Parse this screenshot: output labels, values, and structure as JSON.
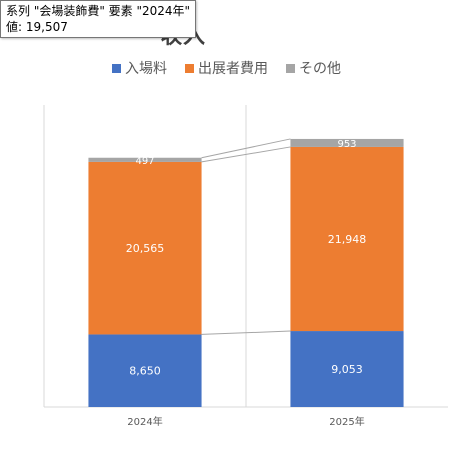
{
  "tooltip": {
    "line1": "系列 \"会場装飾費\" 要素 \"2024年\"",
    "line2": "値: 19,507"
  },
  "chart_data": {
    "type": "bar",
    "stacked": true,
    "title": "収入",
    "categories": [
      "2024年",
      "2025年"
    ],
    "series": [
      {
        "name": "入場料",
        "color": "#4472C4",
        "values": [
          8650,
          9053
        ]
      },
      {
        "name": "出展者費用",
        "color": "#ED7D31",
        "values": [
          20565,
          21948
        ]
      },
      {
        "name": "その他",
        "color": "#A5A5A5",
        "values": [
          497,
          953
        ]
      }
    ],
    "data_labels": [
      [
        "8,650",
        "9,053"
      ],
      [
        "20,565",
        "21,948"
      ],
      [
        "497",
        "953"
      ]
    ],
    "series_lines": true,
    "legend_position": "top",
    "grid": false,
    "ylim": [
      0,
      36000
    ]
  }
}
